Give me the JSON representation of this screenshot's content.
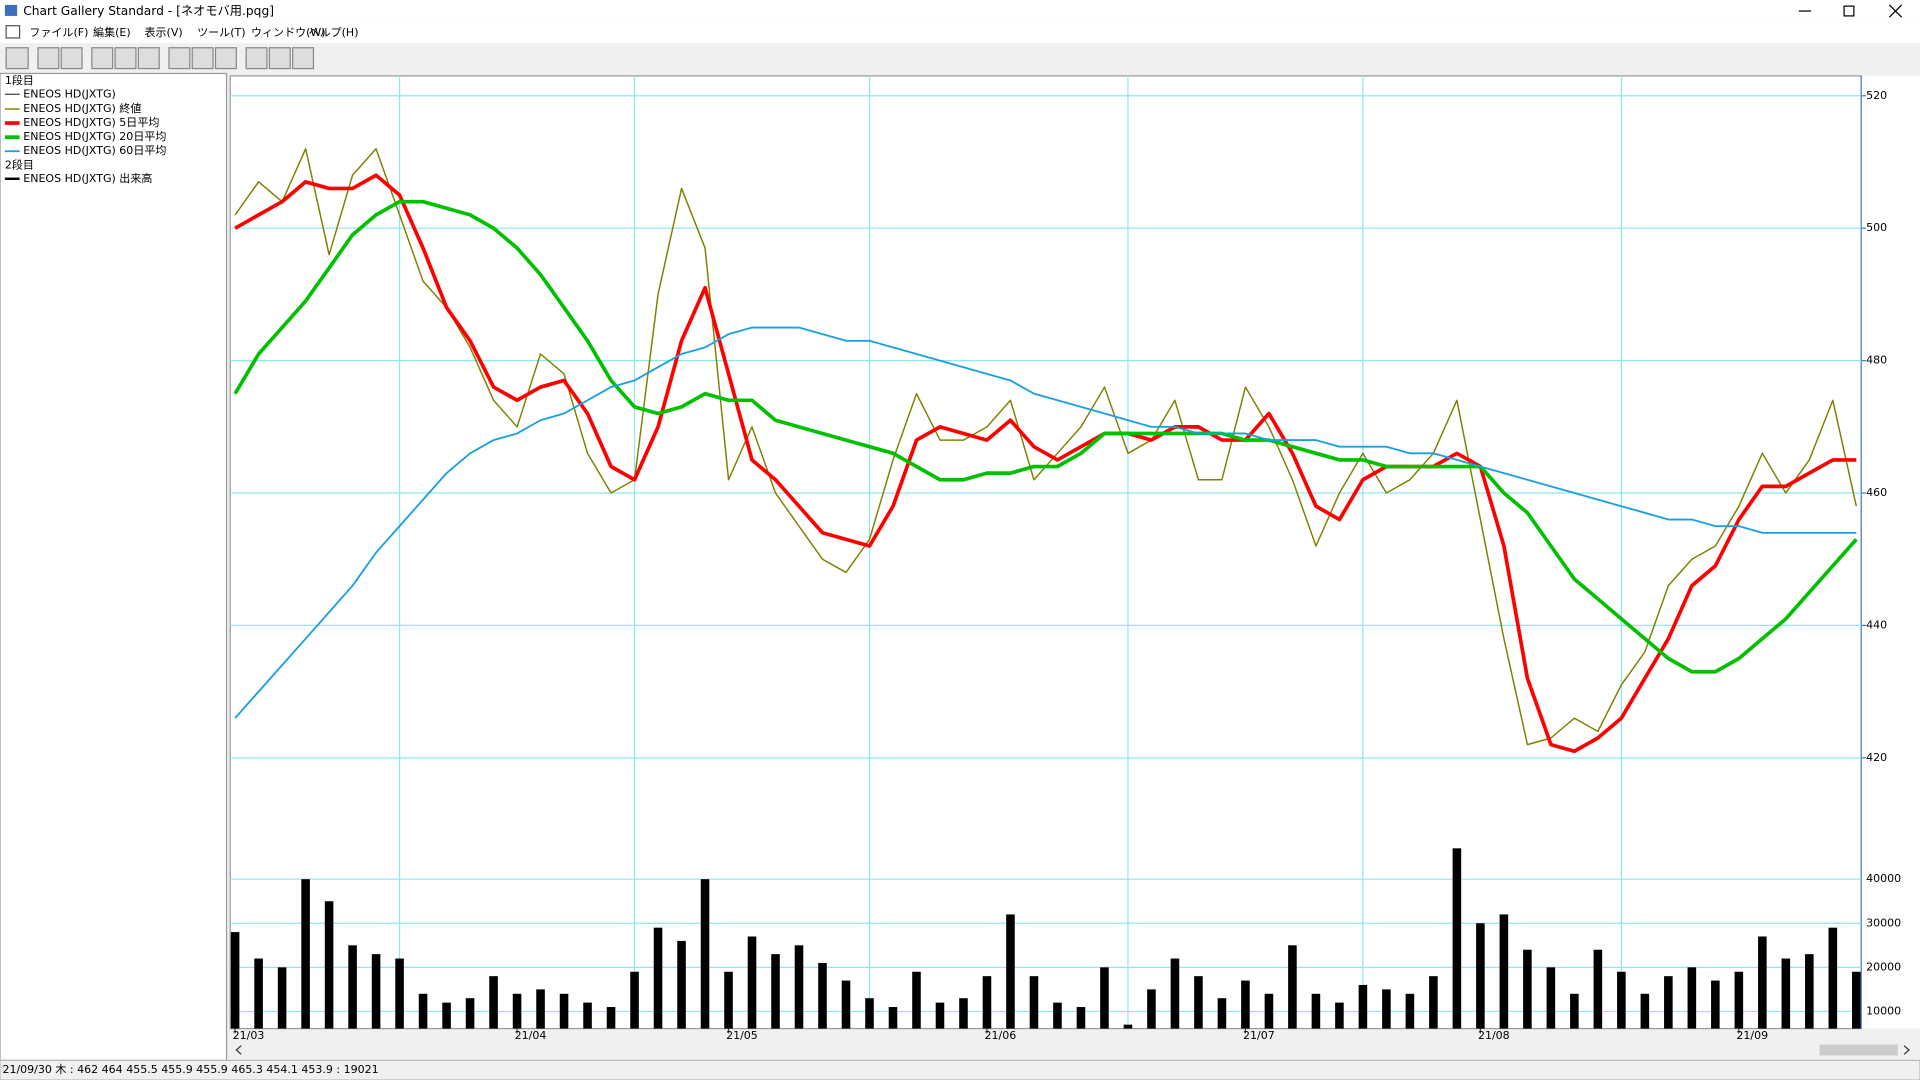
{
  "app": {
    "title": "Chart Gallery Standard - [ネオモバ用.pqg]",
    "menu": [
      "ファイル(F)",
      "編集(E)",
      "表示(V)",
      "ツール(T)",
      "ウィンドウ(W)",
      "ヘルプ(H)"
    ],
    "status": "21/09/30 木 : 462 464 455.5 455.9  455.9 465.3 454.1 453.9 : 19021"
  },
  "chart_data": {
    "type": "line",
    "panel_labels": [
      "1段目",
      "2段目"
    ],
    "candle_name": "ENEOS HD(JXTG)",
    "candle_color": "#404040",
    "categories": [
      "21/03",
      null,
      null,
      null,
      null,
      null,
      null,
      null,
      null,
      null,
      null,
      null,
      "21/04",
      null,
      null,
      null,
      null,
      null,
      null,
      null,
      null,
      "21/05",
      null,
      null,
      null,
      null,
      null,
      null,
      null,
      null,
      null,
      null,
      "21/06",
      null,
      null,
      null,
      null,
      null,
      null,
      null,
      null,
      null,
      null,
      "21/07",
      null,
      null,
      null,
      null,
      null,
      null,
      null,
      null,
      null,
      "21/08",
      null,
      null,
      null,
      null,
      null,
      null,
      null,
      null,
      null,
      null,
      "21/09",
      null,
      null,
      null,
      null,
      null
    ],
    "series": [
      {
        "name": "ENEOS HD(JXTG) 終値",
        "color": "#808000",
        "width": 1.2,
        "values": [
          502,
          507,
          504,
          512,
          496,
          508,
          512,
          502,
          492,
          488,
          482,
          474,
          470,
          481,
          478,
          466,
          460,
          462,
          490,
          506,
          497,
          462,
          470,
          460,
          455,
          450,
          448,
          453,
          465,
          475,
          468,
          468,
          470,
          474,
          462,
          466,
          470,
          476,
          466,
          468,
          474,
          462,
          462,
          476,
          470,
          462,
          452,
          460,
          466,
          460,
          462,
          466,
          474,
          456,
          438,
          422,
          423,
          426,
          424,
          431,
          436,
          446,
          450,
          452,
          458,
          466,
          460,
          465,
          474,
          458
        ]
      },
      {
        "name": "ENEOS HD(JXTG) 5日平均",
        "color": "#ff0000",
        "width": 3,
        "values": [
          500,
          502,
          504,
          507,
          506,
          506,
          508,
          505,
          497,
          488,
          483,
          476,
          474,
          476,
          477,
          472,
          464,
          462,
          470,
          483,
          491,
          478,
          465,
          462,
          458,
          454,
          453,
          452,
          458,
          468,
          470,
          469,
          468,
          471,
          467,
          465,
          467,
          469,
          469,
          468,
          470,
          470,
          468,
          468,
          472,
          466,
          458,
          456,
          462,
          464,
          464,
          464,
          466,
          464,
          452,
          432,
          422,
          421,
          423,
          426,
          432,
          438,
          446,
          449,
          456,
          461,
          461,
          463,
          465,
          465
        ]
      },
      {
        "name": "ENEOS HD(JXTG) 20日平均",
        "color": "#00c000",
        "width": 3,
        "values": [
          475,
          481,
          485,
          489,
          494,
          499,
          502,
          504,
          504,
          503,
          502,
          500,
          497,
          493,
          488,
          483,
          477,
          473,
          472,
          473,
          475,
          474,
          474,
          471,
          470,
          469,
          468,
          467,
          466,
          464,
          462,
          462,
          463,
          463,
          464,
          464,
          466,
          469,
          469,
          469,
          469,
          469,
          469,
          468,
          468,
          467,
          466,
          465,
          465,
          464,
          464,
          464,
          464,
          464,
          460,
          457,
          452,
          447,
          444,
          441,
          438,
          435,
          433,
          433,
          435,
          438,
          441,
          445,
          449,
          453
        ]
      },
      {
        "name": "ENEOS HD(JXTG) 60日平均",
        "color": "#1aa0e0",
        "width": 1.5,
        "values": [
          426,
          430,
          434,
          438,
          442,
          446,
          451,
          455,
          459,
          463,
          466,
          468,
          469,
          471,
          472,
          474,
          476,
          477,
          479,
          481,
          482,
          484,
          485,
          485,
          485,
          484,
          483,
          483,
          482,
          481,
          480,
          479,
          478,
          477,
          475,
          474,
          473,
          472,
          471,
          470,
          470,
          469,
          469,
          469,
          468,
          468,
          468,
          467,
          467,
          467,
          466,
          466,
          465,
          464,
          463,
          462,
          461,
          460,
          459,
          458,
          457,
          456,
          456,
          455,
          455,
          454,
          454,
          454,
          454,
          454
        ]
      },
      {
        "name": "ENEOS HD(JXTG) 出来高",
        "color": "#000000",
        "axis": "y2",
        "values": [
          28000,
          22000,
          20000,
          40000,
          35000,
          25000,
          23000,
          22000,
          14000,
          12000,
          13000,
          18000,
          14000,
          15000,
          14000,
          12000,
          11000,
          19000,
          29000,
          26000,
          40000,
          19000,
          27000,
          23000,
          25000,
          21000,
          17000,
          13000,
          11000,
          19000,
          12000,
          13000,
          18000,
          32000,
          18000,
          12000,
          11000,
          20000,
          7000,
          15000,
          22000,
          18000,
          13000,
          17000,
          14000,
          25000,
          14000,
          12000,
          16000,
          15000,
          14000,
          18000,
          47000,
          30000,
          32000,
          24000,
          20000,
          14000,
          24000,
          19000,
          14000,
          18000,
          20000,
          17000,
          19000,
          27000,
          22000,
          23000,
          29000,
          19000
        ]
      }
    ],
    "ylim": [
      405,
      523
    ],
    "yticks": [
      420,
      440,
      460,
      480,
      500,
      520
    ],
    "y2lim": [
      5000,
      45000
    ],
    "y2ticks": [
      10000,
      20000,
      30000,
      40000
    ],
    "grid": true,
    "grid_color": "#8ee8f0"
  }
}
